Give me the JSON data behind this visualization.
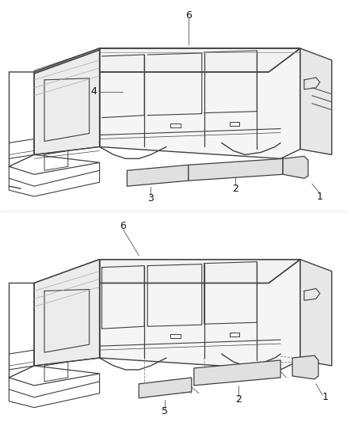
{
  "background_color": "#ffffff",
  "line_color": "#404040",
  "fig_width": 4.38,
  "fig_height": 5.33,
  "dpi": 100,
  "top_callouts": {
    "6": [
      238,
      508,
      205,
      490
    ],
    "4": [
      120,
      440,
      130,
      450
    ],
    "3": [
      188,
      332,
      190,
      345
    ],
    "2": [
      285,
      318,
      270,
      328
    ],
    "1": [
      398,
      330,
      385,
      340
    ]
  },
  "bottom_callouts": {
    "6": [
      155,
      243,
      170,
      255
    ],
    "5": [
      195,
      75,
      195,
      90
    ],
    "2": [
      300,
      88,
      290,
      100
    ],
    "1": [
      398,
      98,
      385,
      108
    ]
  }
}
